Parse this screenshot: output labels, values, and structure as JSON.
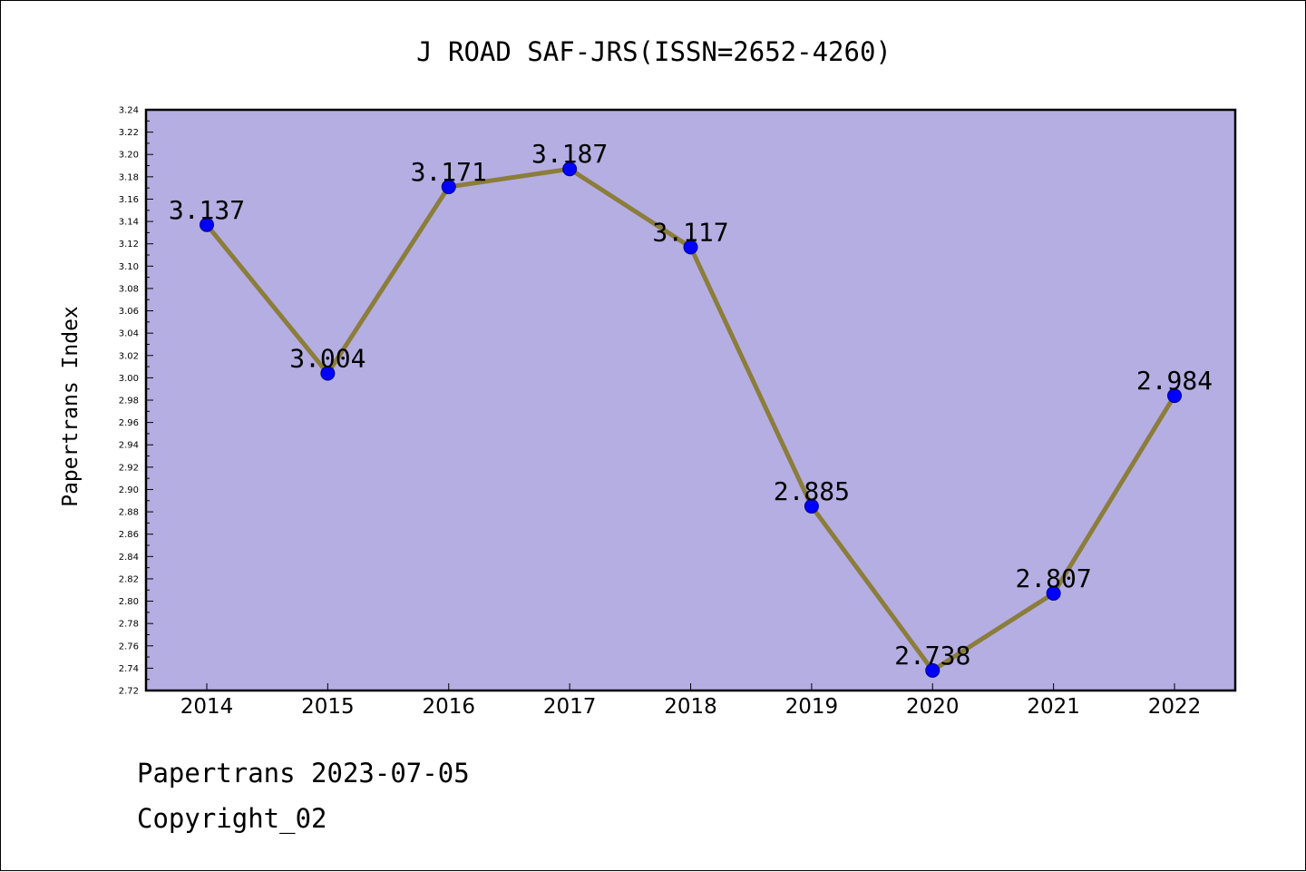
{
  "chart_data": {
    "type": "line",
    "title": "J ROAD SAF-JRS(ISSN=2652-4260)",
    "xlabel": "",
    "ylabel": "Papertrans Index",
    "categories": [
      "2014",
      "2015",
      "2016",
      "2017",
      "2018",
      "2019",
      "2020",
      "2021",
      "2022"
    ],
    "series": [
      {
        "values": [
          3.137,
          3.004,
          3.171,
          3.187,
          3.117,
          2.885,
          2.738,
          2.807,
          2.984
        ],
        "labels": [
          "3.137",
          "3.004",
          "3.171",
          "3.187",
          "3.117",
          "2.885",
          "2.738",
          "2.807",
          "2.984"
        ]
      }
    ],
    "ylim": [
      2.72,
      3.24
    ],
    "ymajor_step": 0.02,
    "yticks": [
      "2.72",
      "2.74",
      "2.76",
      "2.78",
      "2.80",
      "2.82",
      "2.84",
      "2.86",
      "2.88",
      "2.90",
      "2.92",
      "2.94",
      "2.96",
      "2.98",
      "3.00",
      "3.02",
      "3.04",
      "3.06",
      "3.08",
      "3.10",
      "3.12",
      "3.14",
      "3.16",
      "3.18",
      "3.20",
      "3.22",
      "3.24"
    ],
    "grid": false,
    "legend": "none",
    "colors": {
      "plot_background": "#b5aee3",
      "line": "#8b7d3a",
      "marker": "#0000ff",
      "axis": "#000000"
    }
  },
  "footer": {
    "date_line": "Papertrans 2023-07-05",
    "copyright_line": "Copyright_02"
  }
}
